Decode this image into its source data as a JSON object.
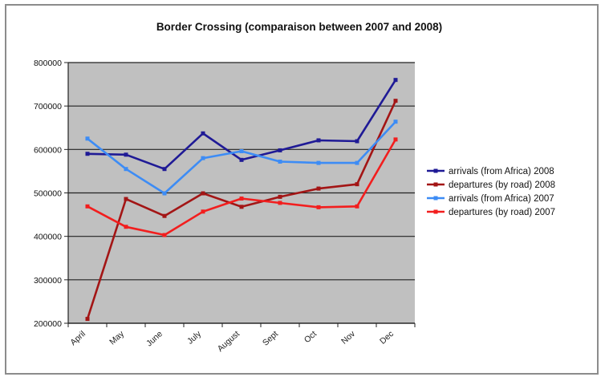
{
  "chart_data": {
    "type": "line",
    "title": "Border Crossing (comparaison between 2007 and 2008)",
    "xlabel": "",
    "ylabel": "",
    "categories": [
      "April",
      "May",
      "June",
      "July",
      "August",
      "Sept",
      "Oct",
      "Nov",
      "Dec"
    ],
    "ylim": [
      200000,
      800000
    ],
    "yticks": [
      "200000",
      "300000",
      "400000",
      "500000",
      "600000",
      "700000",
      "800000"
    ],
    "grid": true,
    "legend_position": "right",
    "plot_background": "#c0c0c0",
    "series": [
      {
        "name": "arrivals (from Africa) 2008",
        "color": "#1f1a96",
        "values": [
          590000,
          588000,
          555000,
          637000,
          576000,
          598000,
          621000,
          619000,
          760000
        ]
      },
      {
        "name": "departures (by road) 2008",
        "color": "#a31515",
        "values": [
          210000,
          486000,
          447000,
          499000,
          468000,
          491000,
          510000,
          520000,
          712000
        ]
      },
      {
        "name": "arrivals (from Africa) 2007",
        "color": "#3d8cf5",
        "values": [
          625000,
          555000,
          499000,
          580000,
          596000,
          572000,
          569000,
          569000,
          664000
        ]
      },
      {
        "name": "departures (by road) 2007",
        "color": "#f21e1e",
        "values": [
          469000,
          422000,
          403000,
          457000,
          487000,
          477000,
          467000,
          469000,
          623000
        ]
      }
    ]
  }
}
